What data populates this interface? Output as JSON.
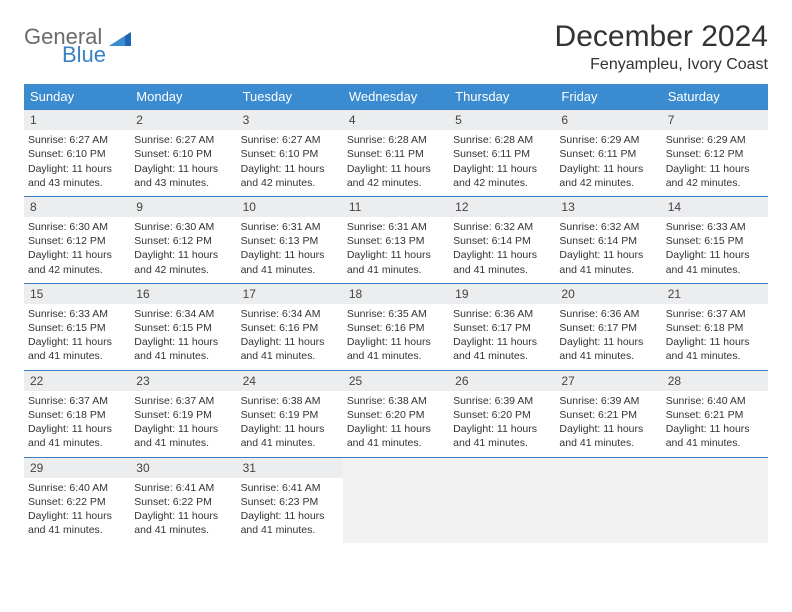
{
  "logo": {
    "general": "General",
    "blue": "Blue"
  },
  "title": "December 2024",
  "location": "Fenyampleu, Ivory Coast",
  "colors": {
    "header_bg": "#3b8bd0",
    "border": "#3b7fc4",
    "daynum_bg": "#ecedee",
    "empty_bg": "#f2f2f2",
    "text": "#333333",
    "logo_gray": "#6b6b6b",
    "logo_blue": "#3b7fc4"
  },
  "dow": [
    "Sunday",
    "Monday",
    "Tuesday",
    "Wednesday",
    "Thursday",
    "Friday",
    "Saturday"
  ],
  "days": [
    {
      "n": "1",
      "sr": "6:27 AM",
      "ss": "6:10 PM",
      "dl": "11 hours and 43 minutes."
    },
    {
      "n": "2",
      "sr": "6:27 AM",
      "ss": "6:10 PM",
      "dl": "11 hours and 43 minutes."
    },
    {
      "n": "3",
      "sr": "6:27 AM",
      "ss": "6:10 PM",
      "dl": "11 hours and 42 minutes."
    },
    {
      "n": "4",
      "sr": "6:28 AM",
      "ss": "6:11 PM",
      "dl": "11 hours and 42 minutes."
    },
    {
      "n": "5",
      "sr": "6:28 AM",
      "ss": "6:11 PM",
      "dl": "11 hours and 42 minutes."
    },
    {
      "n": "6",
      "sr": "6:29 AM",
      "ss": "6:11 PM",
      "dl": "11 hours and 42 minutes."
    },
    {
      "n": "7",
      "sr": "6:29 AM",
      "ss": "6:12 PM",
      "dl": "11 hours and 42 minutes."
    },
    {
      "n": "8",
      "sr": "6:30 AM",
      "ss": "6:12 PM",
      "dl": "11 hours and 42 minutes."
    },
    {
      "n": "9",
      "sr": "6:30 AM",
      "ss": "6:12 PM",
      "dl": "11 hours and 42 minutes."
    },
    {
      "n": "10",
      "sr": "6:31 AM",
      "ss": "6:13 PM",
      "dl": "11 hours and 41 minutes."
    },
    {
      "n": "11",
      "sr": "6:31 AM",
      "ss": "6:13 PM",
      "dl": "11 hours and 41 minutes."
    },
    {
      "n": "12",
      "sr": "6:32 AM",
      "ss": "6:14 PM",
      "dl": "11 hours and 41 minutes."
    },
    {
      "n": "13",
      "sr": "6:32 AM",
      "ss": "6:14 PM",
      "dl": "11 hours and 41 minutes."
    },
    {
      "n": "14",
      "sr": "6:33 AM",
      "ss": "6:15 PM",
      "dl": "11 hours and 41 minutes."
    },
    {
      "n": "15",
      "sr": "6:33 AM",
      "ss": "6:15 PM",
      "dl": "11 hours and 41 minutes."
    },
    {
      "n": "16",
      "sr": "6:34 AM",
      "ss": "6:15 PM",
      "dl": "11 hours and 41 minutes."
    },
    {
      "n": "17",
      "sr": "6:34 AM",
      "ss": "6:16 PM",
      "dl": "11 hours and 41 minutes."
    },
    {
      "n": "18",
      "sr": "6:35 AM",
      "ss": "6:16 PM",
      "dl": "11 hours and 41 minutes."
    },
    {
      "n": "19",
      "sr": "6:36 AM",
      "ss": "6:17 PM",
      "dl": "11 hours and 41 minutes."
    },
    {
      "n": "20",
      "sr": "6:36 AM",
      "ss": "6:17 PM",
      "dl": "11 hours and 41 minutes."
    },
    {
      "n": "21",
      "sr": "6:37 AM",
      "ss": "6:18 PM",
      "dl": "11 hours and 41 minutes."
    },
    {
      "n": "22",
      "sr": "6:37 AM",
      "ss": "6:18 PM",
      "dl": "11 hours and 41 minutes."
    },
    {
      "n": "23",
      "sr": "6:37 AM",
      "ss": "6:19 PM",
      "dl": "11 hours and 41 minutes."
    },
    {
      "n": "24",
      "sr": "6:38 AM",
      "ss": "6:19 PM",
      "dl": "11 hours and 41 minutes."
    },
    {
      "n": "25",
      "sr": "6:38 AM",
      "ss": "6:20 PM",
      "dl": "11 hours and 41 minutes."
    },
    {
      "n": "26",
      "sr": "6:39 AM",
      "ss": "6:20 PM",
      "dl": "11 hours and 41 minutes."
    },
    {
      "n": "27",
      "sr": "6:39 AM",
      "ss": "6:21 PM",
      "dl": "11 hours and 41 minutes."
    },
    {
      "n": "28",
      "sr": "6:40 AM",
      "ss": "6:21 PM",
      "dl": "11 hours and 41 minutes."
    },
    {
      "n": "29",
      "sr": "6:40 AM",
      "ss": "6:22 PM",
      "dl": "11 hours and 41 minutes."
    },
    {
      "n": "30",
      "sr": "6:41 AM",
      "ss": "6:22 PM",
      "dl": "11 hours and 41 minutes."
    },
    {
      "n": "31",
      "sr": "6:41 AM",
      "ss": "6:23 PM",
      "dl": "11 hours and 41 minutes."
    }
  ],
  "labels": {
    "sunrise": "Sunrise:",
    "sunset": "Sunset:",
    "daylight": "Daylight:"
  },
  "layout": {
    "start_dow": 0,
    "total_cells": 35
  }
}
